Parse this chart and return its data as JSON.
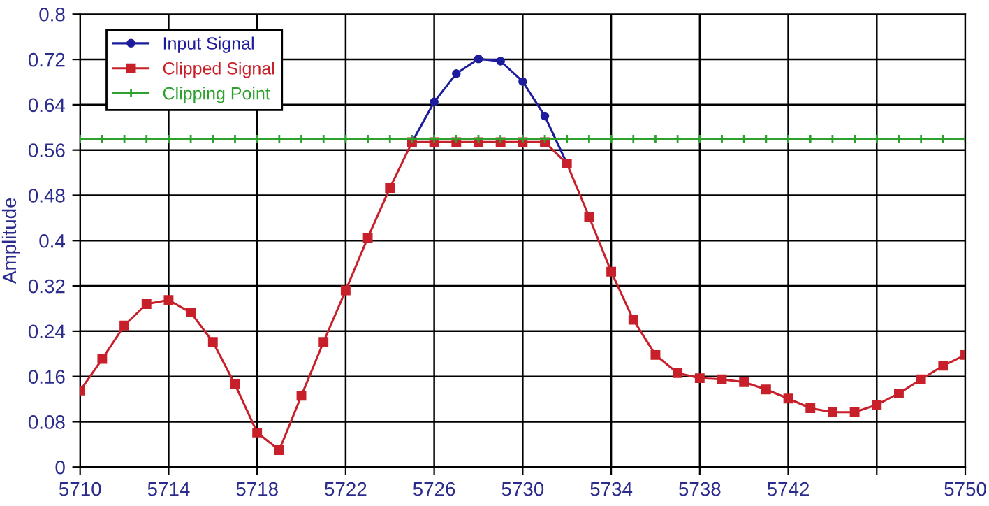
{
  "chart_data": {
    "type": "line",
    "ylabel": "Amplitude",
    "x": [
      5710,
      5711,
      5712,
      5713,
      5714,
      5715,
      5716,
      5717,
      5718,
      5719,
      5720,
      5721,
      5722,
      5723,
      5724,
      5725,
      5726,
      5727,
      5728,
      5729,
      5730,
      5731,
      5732,
      5733,
      5734,
      5735,
      5736,
      5737,
      5738,
      5739,
      5740,
      5741,
      5742,
      5743,
      5744,
      5745,
      5746,
      5747,
      5748,
      5749,
      5750
    ],
    "series": [
      {
        "name": "Input Signal",
        "color": "#1c1c9c",
        "marker": "circle",
        "values": [
          null,
          null,
          null,
          null,
          null,
          null,
          null,
          null,
          null,
          null,
          null,
          null,
          null,
          null,
          null,
          0.574,
          0.645,
          0.695,
          0.721,
          0.717,
          0.681,
          0.62,
          0.536,
          null,
          null,
          null,
          null,
          null,
          null,
          null,
          null,
          null,
          null,
          null,
          null,
          null,
          null,
          null,
          null,
          null,
          null
        ]
      },
      {
        "name": "Clipped Signal",
        "color": "#c8202a",
        "marker": "square",
        "values": [
          0.135,
          0.191,
          0.25,
          0.288,
          0.295,
          0.273,
          0.221,
          0.146,
          0.061,
          0.03,
          0.126,
          0.221,
          0.312,
          0.405,
          0.493,
          0.574,
          0.574,
          0.574,
          0.574,
          0.574,
          0.574,
          0.574,
          0.536,
          0.442,
          0.345,
          0.26,
          0.198,
          0.166,
          0.157,
          0.155,
          0.15,
          0.137,
          0.121,
          0.104,
          0.097,
          0.097,
          0.11,
          0.13,
          0.155,
          0.179,
          0.198
        ]
      },
      {
        "name": "Clipping Point",
        "color": "#2ea02e",
        "marker": "cross",
        "values": [
          0.58,
          0.58,
          0.58,
          0.58,
          0.58,
          0.58,
          0.58,
          0.58,
          0.58,
          0.58,
          0.58,
          0.58,
          0.58,
          0.58,
          0.58,
          0.58,
          0.58,
          0.58,
          0.58,
          0.58,
          0.58,
          0.58,
          0.58,
          0.58,
          0.58,
          0.58,
          0.58,
          0.58,
          0.58,
          0.58,
          0.58,
          0.58,
          0.58,
          0.58,
          0.58,
          0.58,
          0.58,
          0.58,
          0.58,
          0.58,
          0.58
        ]
      }
    ],
    "xlim": [
      5710,
      5750
    ],
    "xticks": [
      5710,
      5714,
      5718,
      5722,
      5726,
      5730,
      5734,
      5738,
      5742,
      {
        "value": 5746,
        "label": null
      },
      5750
    ],
    "ylim": [
      0,
      0.8
    ],
    "yticks": [
      0,
      0.08,
      0.16,
      0.24,
      0.32,
      0.4,
      0.48,
      0.56,
      0.64,
      0.72,
      0.8
    ],
    "grid": true,
    "legend": "top left",
    "line_style": "solid"
  }
}
